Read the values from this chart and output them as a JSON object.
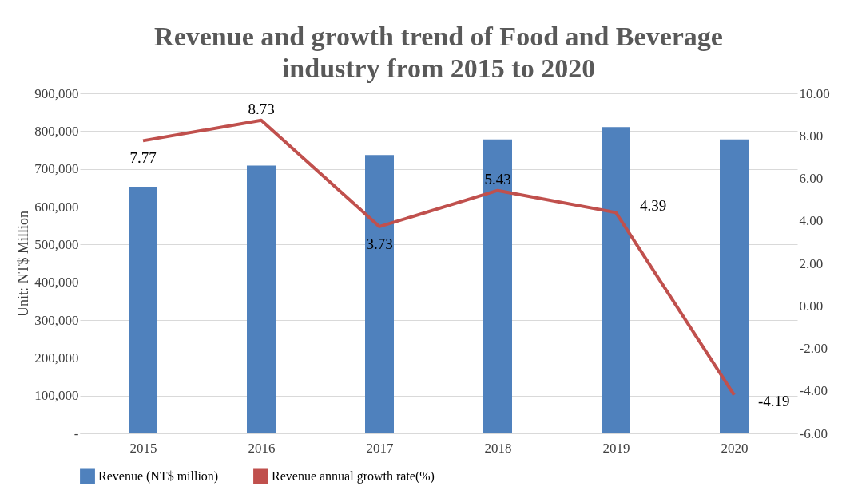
{
  "chart_data": {
    "type": "bar",
    "title": "Revenue and growth trend of Food and Beverage industry from 2015 to 2020",
    "ylabel": "Unit: NT$ Million",
    "categories": [
      "2015",
      "2016",
      "2017",
      "2018",
      "2019",
      "2020"
    ],
    "series": [
      {
        "name": "Revenue (NT$ million)",
        "color": "#4f81bd",
        "values": [
          653000,
          709000,
          737000,
          778000,
          811000,
          778000
        ]
      },
      {
        "name": "Revenue annual growth rate(%)",
        "type": "line",
        "axis": "y2",
        "color": "#c0504d",
        "values": [
          7.77,
          8.73,
          3.73,
          5.43,
          4.39,
          -4.19
        ],
        "value_labels": [
          "7.77",
          "8.73",
          "3.73",
          "5.43",
          "4.39",
          "-4.19"
        ]
      }
    ],
    "ylim": [
      0,
      900000
    ],
    "yticks": [
      {
        "value": 0,
        "label": "-"
      },
      {
        "value": 100000,
        "label": "100,000"
      },
      {
        "value": 200000,
        "label": "200,000"
      },
      {
        "value": 300000,
        "label": "300,000"
      },
      {
        "value": 400000,
        "label": "400,000"
      },
      {
        "value": 500000,
        "label": "500,000"
      },
      {
        "value": 600000,
        "label": "600,000"
      },
      {
        "value": 700000,
        "label": "700,000"
      },
      {
        "value": 800000,
        "label": "800,000"
      },
      {
        "value": 900000,
        "label": "900,000"
      }
    ],
    "y2lim": [
      -6,
      10
    ],
    "y2ticks": [
      {
        "value": -6,
        "label": "-6.00"
      },
      {
        "value": -4,
        "label": "-4.00"
      },
      {
        "value": -2,
        "label": "-2.00"
      },
      {
        "value": 0,
        "label": "0.00"
      },
      {
        "value": 2,
        "label": "2.00"
      },
      {
        "value": 4,
        "label": "4.00"
      },
      {
        "value": 6,
        "label": "6.00"
      },
      {
        "value": 8,
        "label": "8.00"
      },
      {
        "value": 10,
        "label": "10.00"
      }
    ],
    "grid": "y",
    "legend": "bottom"
  }
}
